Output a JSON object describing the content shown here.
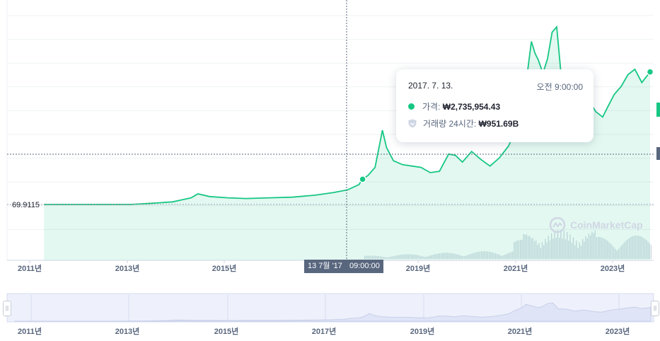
{
  "chart_data": {
    "type": "area",
    "x_labels": [
      "2011년",
      "2013년",
      "2015년",
      "2019년",
      "2021년",
      "2023년"
    ],
    "navigator_labels": [
      "2011년",
      "2013년",
      "2015년",
      "2017년",
      "2019년",
      "2021년",
      "2023년"
    ],
    "reference_value_label": "69.9115",
    "series": [
      {
        "x": [
          2010.6,
          2011.0,
          2011.5,
          2012.0,
          2012.5,
          2013.0,
          2013.4,
          2013.8,
          2013.95,
          2014.2,
          2014.6,
          2015.0,
          2015.5,
          2016.0,
          2016.5,
          2016.9,
          2017.2,
          2017.45,
          2017.53,
          2017.65,
          2017.8,
          2017.96,
          2018.05,
          2018.2,
          2018.4,
          2018.6,
          2018.8,
          2019.0,
          2019.2,
          2019.4,
          2019.55,
          2019.7,
          2019.9,
          2020.1,
          2020.3,
          2020.5,
          2020.7,
          2020.85,
          2020.95,
          2021.1,
          2021.2,
          2021.28,
          2021.35,
          2021.45,
          2021.55,
          2021.65,
          2021.75,
          2021.82,
          2021.87,
          2021.95,
          2022.05,
          2022.2,
          2022.4,
          2022.6,
          2022.75,
          2022.85,
          2023.0,
          2023.15,
          2023.3,
          2023.45,
          2023.6,
          2023.78
        ],
        "y": [
          -4.1,
          -4.1,
          -4.1,
          -4.1,
          -4.1,
          -4.0,
          -3.9,
          -3.6,
          -3.3,
          -3.5,
          -3.6,
          -3.65,
          -3.6,
          -3.55,
          -3.4,
          -3.2,
          -3.0,
          -2.6,
          -2.2,
          -1.9,
          -1.3,
          1.5,
          0.2,
          -0.8,
          -1.1,
          -1.2,
          -1.3,
          -1.7,
          -1.6,
          -0.3,
          -0.4,
          -0.9,
          -0.1,
          -0.7,
          -1.2,
          -0.6,
          0.3,
          1.4,
          3.5,
          5.5,
          8.2,
          7.3,
          6.8,
          5.8,
          6.9,
          8.9,
          9.3,
          6.6,
          4.8,
          4.9,
          4.6,
          3.2,
          4.0,
          2.9,
          2.5,
          3.2,
          4.2,
          4.8,
          5.7,
          6.1,
          5.1,
          5.9
        ]
      }
    ],
    "highlight": {
      "x": 2017.53,
      "date": "2017. 7. 13.",
      "time": "오전 9:00:00",
      "price_label": "가격:",
      "price": "₩2,735,954.43",
      "volume_label": "거래량 24시간:",
      "volume": "₩951.69B",
      "crosshair_date": "13 7월 '17",
      "crosshair_time": "09:00:00"
    },
    "watermark": "CoinMarketCap",
    "colors": {
      "line": "#16c784",
      "early_line": "#ea3943",
      "volume": "#cfd6e4",
      "navigator": "#e8ecfb"
    }
  }
}
